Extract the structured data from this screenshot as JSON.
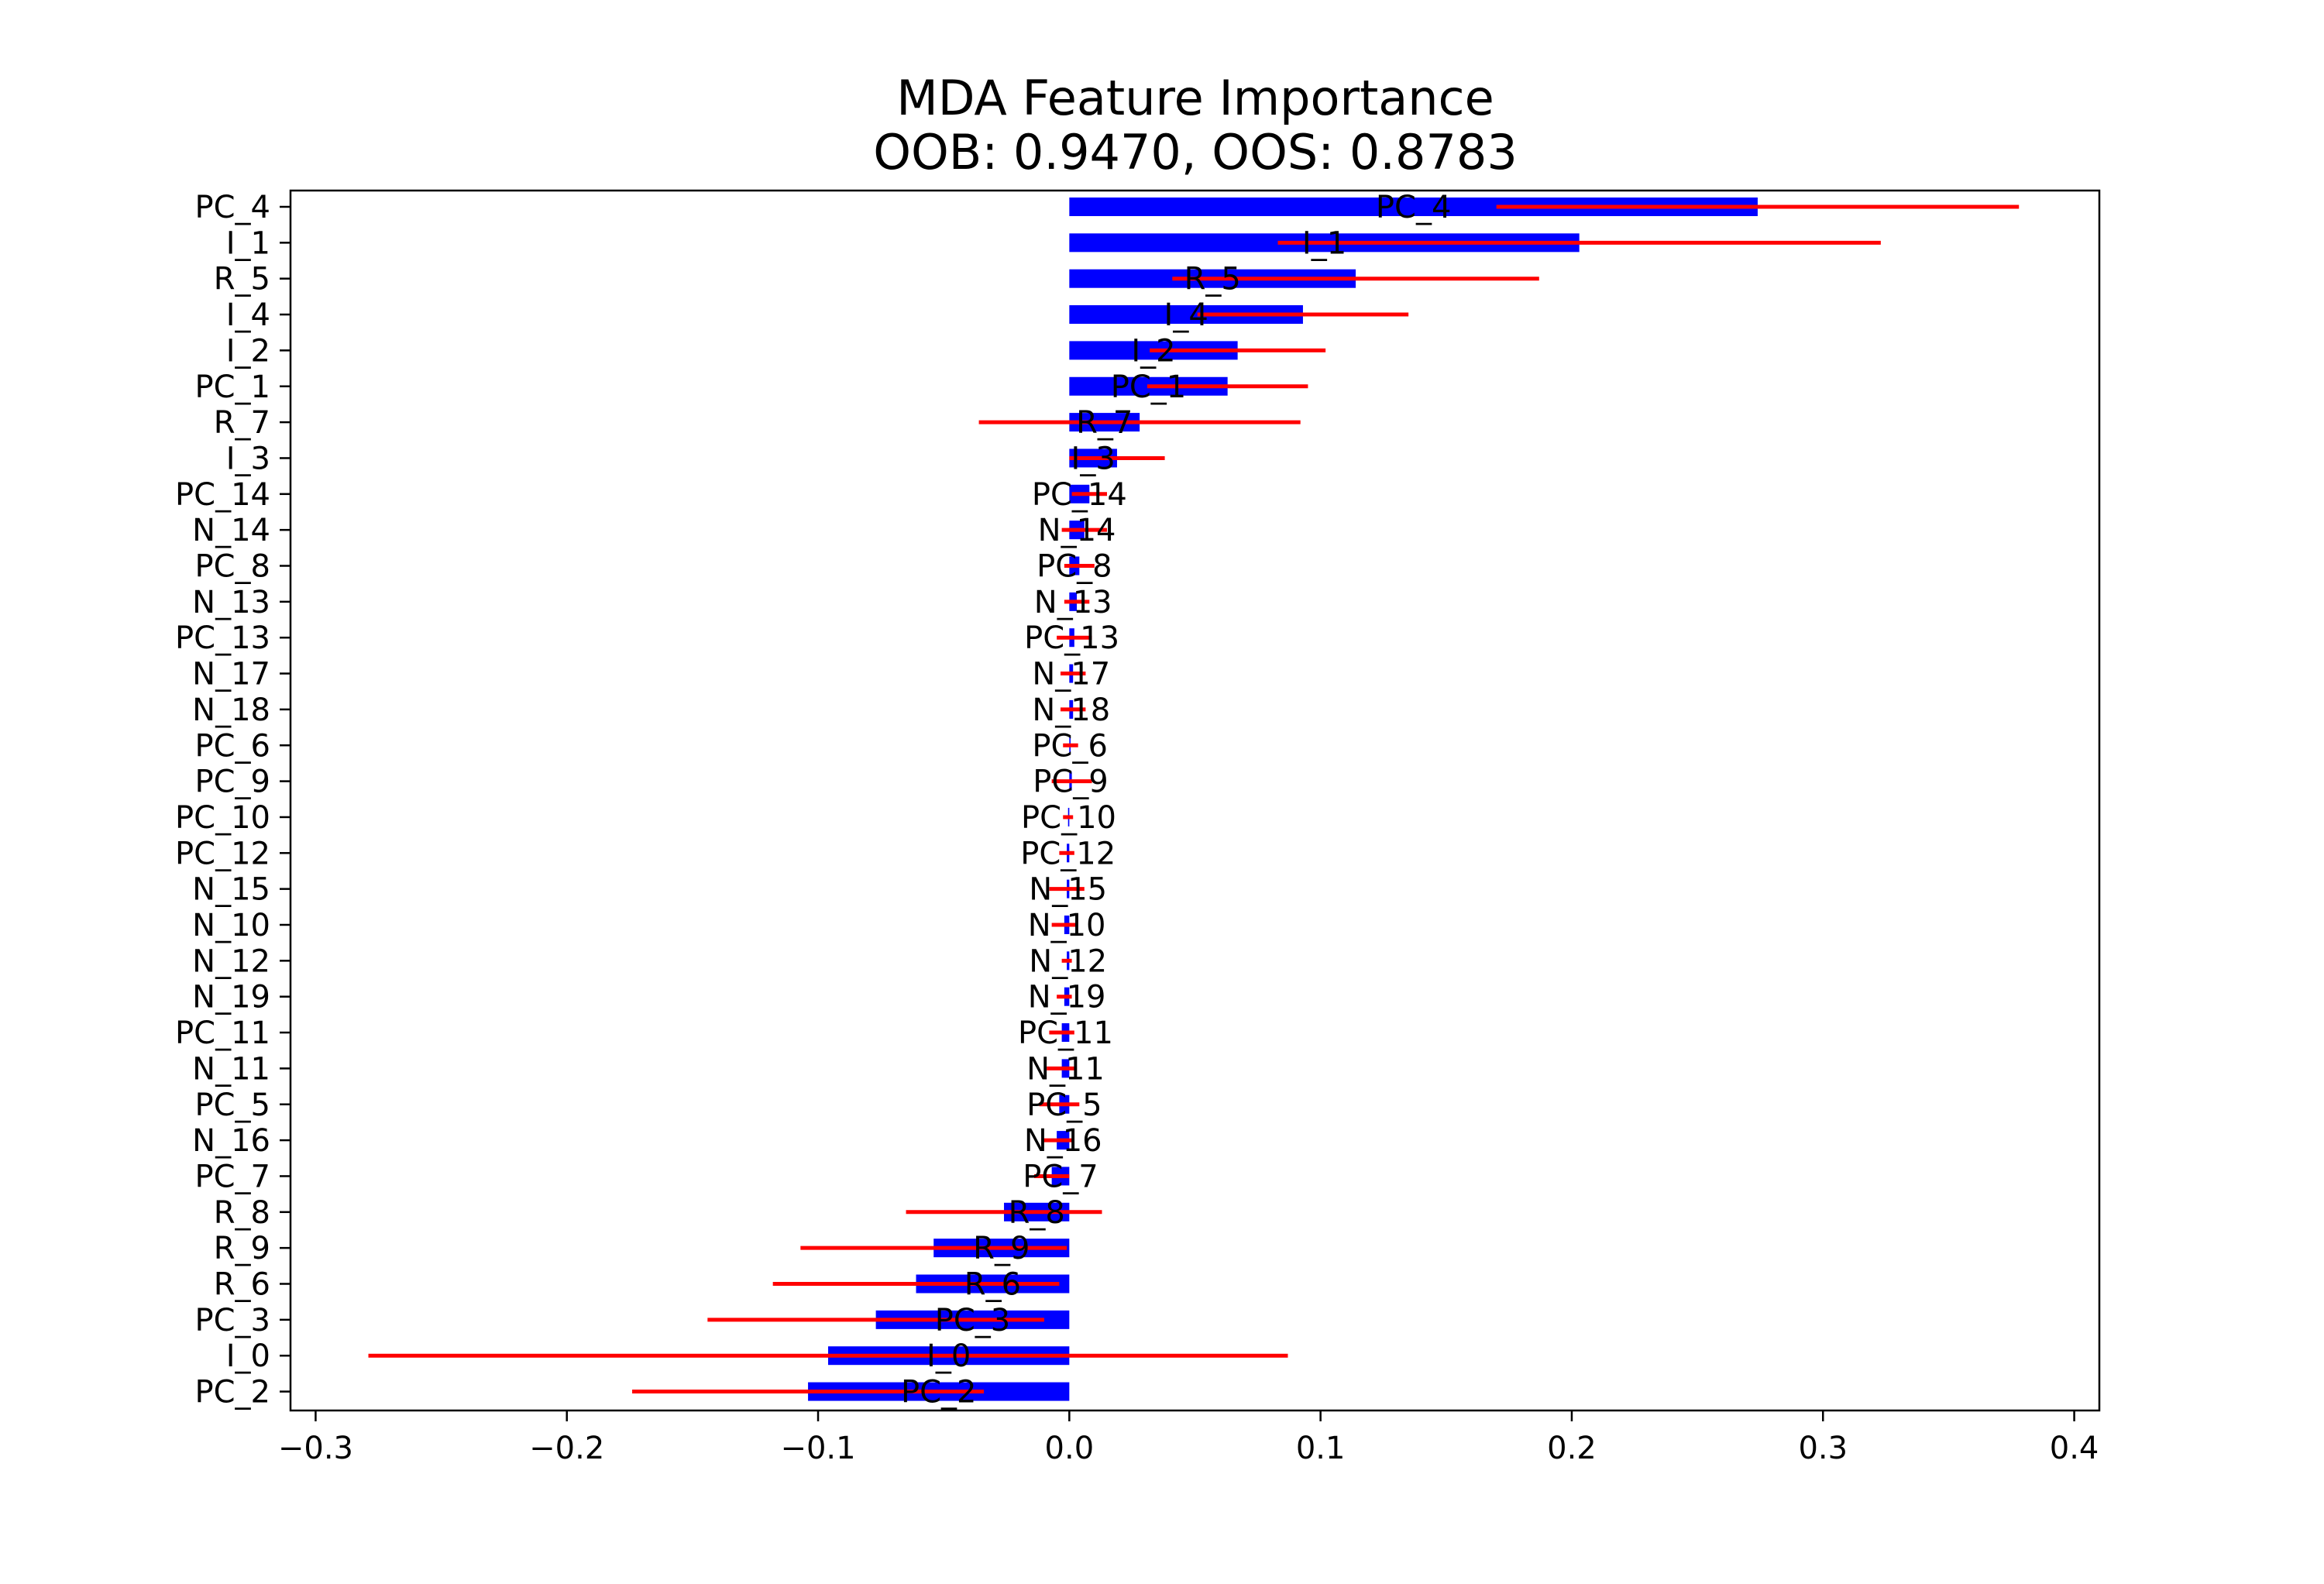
{
  "chart_data": {
    "type": "bar",
    "orientation": "horizontal",
    "title": "MDA Feature Importance",
    "subtitle": "OOB: 0.9470, OOS: 0.8783",
    "xlabel": "",
    "ylabel": "",
    "xlim": [
      -0.31,
      0.41
    ],
    "xticks": [
      -0.3,
      -0.2,
      -0.1,
      0.0,
      0.1,
      0.2,
      0.3,
      0.4
    ],
    "xtick_labels": [
      "−0.3",
      "−0.2",
      "−0.1",
      "0.0",
      "0.1",
      "0.2",
      "0.3",
      "0.4"
    ],
    "grid": false,
    "legend": "none",
    "bar_color": "#0000ff",
    "error_color": "#ff0000",
    "categories": [
      "PC_4",
      "I_1",
      "R_5",
      "I_4",
      "I_2",
      "PC_1",
      "R_7",
      "I_3",
      "PC_14",
      "N_14",
      "PC_8",
      "N_13",
      "PC_13",
      "N_17",
      "N_18",
      "PC_6",
      "PC_9",
      "PC_10",
      "PC_12",
      "N_15",
      "N_10",
      "N_12",
      "N_19",
      "PC_11",
      "N_11",
      "PC_5",
      "N_16",
      "PC_7",
      "R_8",
      "R_9",
      "R_6",
      "PC_3",
      "I_0",
      "PC_2"
    ],
    "values": [
      0.274,
      0.203,
      0.114,
      0.093,
      0.067,
      0.063,
      0.028,
      0.019,
      0.008,
      0.006,
      0.004,
      0.003,
      0.002,
      0.0015,
      0.0015,
      0.0005,
      0.001,
      -0.0005,
      -0.001,
      -0.001,
      -0.002,
      -0.001,
      -0.002,
      -0.003,
      -0.003,
      -0.004,
      -0.005,
      -0.007,
      -0.026,
      -0.054,
      -0.061,
      -0.077,
      -0.096,
      -0.104
    ],
    "errors": [
      0.104,
      0.12,
      0.073,
      0.042,
      0.035,
      0.032,
      0.064,
      0.019,
      0.007,
      0.009,
      0.006,
      0.005,
      0.007,
      0.005,
      0.005,
      0.003,
      0.008,
      0.002,
      0.003,
      0.007,
      0.005,
      0.002,
      0.003,
      0.005,
      0.006,
      0.008,
      0.006,
      0.007,
      0.039,
      0.053,
      0.057,
      0.067,
      0.183,
      0.07
    ]
  }
}
